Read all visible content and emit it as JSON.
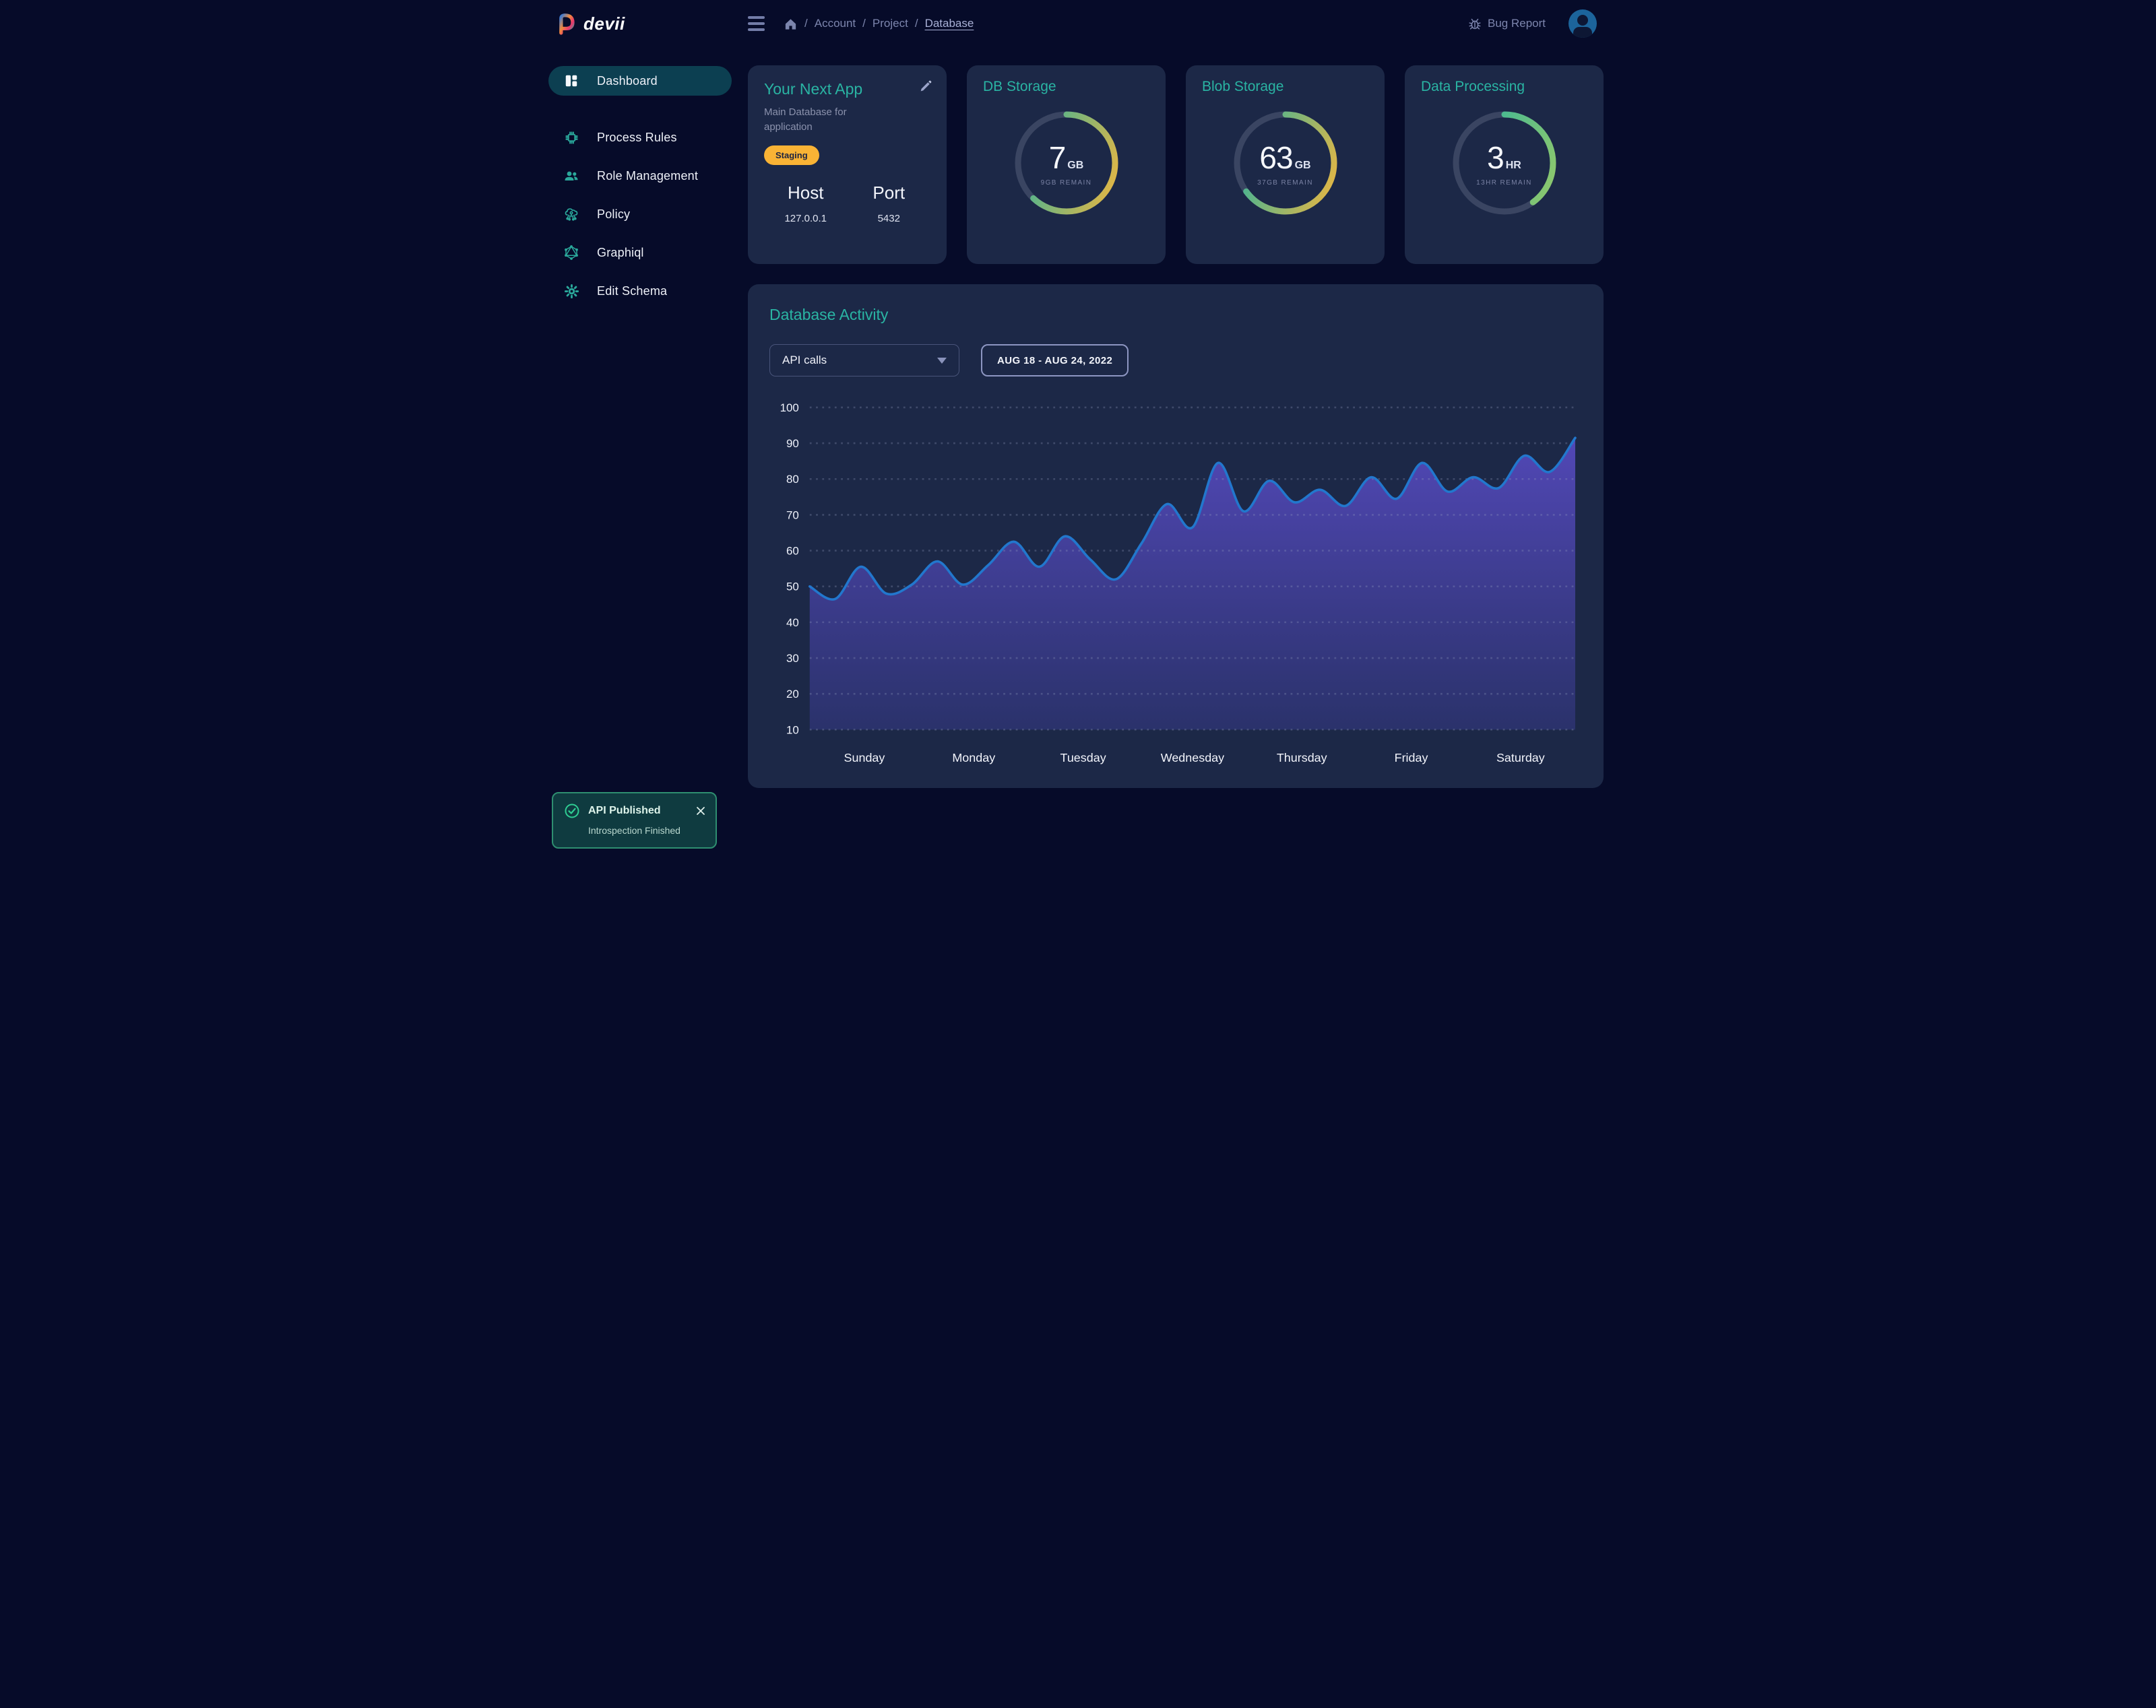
{
  "topbar": {
    "logo_text": "devii",
    "breadcrumb": {
      "items": [
        "Account",
        "Project",
        "Database"
      ],
      "active": "Database"
    },
    "bug_report_label": "Bug Report"
  },
  "sidebar": {
    "items": [
      {
        "label": "Dashboard",
        "icon": "dashboard-icon",
        "active": true
      },
      {
        "label": "Process Rules",
        "icon": "chip-icon",
        "active": false
      },
      {
        "label": "Role Management",
        "icon": "people-icon",
        "active": false
      },
      {
        "label": "Policy",
        "icon": "policy-cloud-icon",
        "active": false
      },
      {
        "label": "Graphiql",
        "icon": "graphql-icon",
        "active": false
      },
      {
        "label": "Edit Schema",
        "icon": "gear-icon",
        "active": false
      }
    ]
  },
  "app_card": {
    "title": "Your Next App",
    "subtitle": "Main Database for application",
    "badge": "Staging",
    "badge_color": "#f9b335",
    "host_label": "Host",
    "host_value": "127.0.0.1",
    "port_label": "Port",
    "port_value": "5432"
  },
  "gauges": [
    {
      "title": "DB Storage",
      "value": "7",
      "unit": "GB",
      "remain": "9GB REMAIN",
      "percent": 62,
      "gradient": [
        "#2bb4a1",
        "#f4b63c"
      ]
    },
    {
      "title": "Blob Storage",
      "value": "63",
      "unit": "GB",
      "remain": "37GB REMAIN",
      "percent": 65,
      "gradient": [
        "#2bb4a1",
        "#f4b63c"
      ]
    },
    {
      "title": "Data Processing",
      "value": "3",
      "unit": "HR",
      "remain": "13HR REMAIN",
      "percent": 40,
      "gradient": [
        "#2bb4a1",
        "#96c968"
      ]
    }
  ],
  "activity": {
    "title": "Database Activity",
    "metric_selector_value": "API calls",
    "date_range": "AUG 18 - AUG 24, 2022"
  },
  "chart_data": {
    "type": "area",
    "title": "Database Activity",
    "series_name": "API calls",
    "x_labels": [
      "Sunday",
      "Monday",
      "Tuesday",
      "Wednesday",
      "Thursday",
      "Friday",
      "Saturday"
    ],
    "y_ticks": [
      100,
      90,
      80,
      70,
      60,
      50,
      40,
      30,
      20,
      10
    ],
    "ylim": [
      10,
      100
    ],
    "grid": "dotted-horizontal",
    "values": [
      50,
      46.5,
      55.5,
      48,
      50.5,
      57,
      50.5,
      56,
      62.5,
      55.5,
      64,
      57.5,
      52,
      62,
      73,
      66.5,
      84.5,
      71,
      79.5,
      73.5,
      77,
      72.5,
      80.5,
      74.5,
      84.5,
      76.5,
      80.5,
      77.5,
      86.5,
      82,
      91.5
    ],
    "line_color": "#2277cd",
    "fill_top": "#5449bb",
    "fill_bottom": "#2c336f",
    "grid_color": "#9ba4c6",
    "tick_color": "#eef1fa"
  },
  "toast": {
    "title": "API Published",
    "subtitle": "Introspection Finished",
    "status_color": "#2fcd92"
  },
  "colors": {
    "page_bg": "#060b29",
    "card_bg": "#1c2847",
    "accent_teal": "#2ab4a3",
    "active_nav_bg": "#0c3f51",
    "ring_track": "#3a4562",
    "muted_text": "#7c85ad",
    "avatar_bg": "#1c649b"
  }
}
